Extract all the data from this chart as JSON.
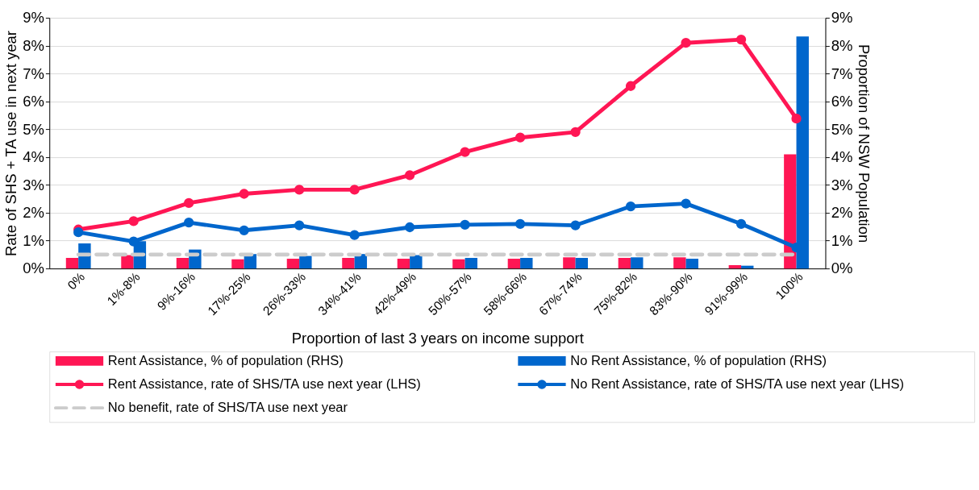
{
  "chart_data": {
    "type": "bar",
    "xlabel": "Proportion of last 3 years on income support",
    "ylabel": "Rate of SHS + TA use in next year",
    "y2label": "Proportion of NSW Population",
    "categories": [
      "0%",
      "1%-8%",
      "9%-16%",
      "17%-25%",
      "26%-33%",
      "34%-41%",
      "42%-49%",
      "50%-57%",
      "58%-66%",
      "67%-74%",
      "75%-82%",
      "83%-90%",
      "91%-99%",
      "100%"
    ],
    "series": [
      {
        "name": "Rent Assistance, % of population (RHS)",
        "axis": "y2",
        "color": "#ff1654",
        "values": [
          0.38,
          0.48,
          0.38,
          0.33,
          0.35,
          0.38,
          0.35,
          0.33,
          0.35,
          0.4,
          0.38,
          0.4,
          0.12,
          4.1
        ]
      },
      {
        "name": "No Rent Assistance, % of population (RHS)",
        "axis": "y2",
        "color": "#0066cc",
        "values": [
          0.9,
          0.98,
          0.68,
          0.52,
          0.45,
          0.52,
          0.48,
          0.38,
          0.38,
          0.38,
          0.4,
          0.35,
          0.1,
          8.33
        ]
      },
      {
        "name": "Rent Assistance, rate of SHS/TA use next year (LHS)",
        "type": "line",
        "marker": "circle",
        "line_style": "solid",
        "color": "#ff1654",
        "values": [
          1.4,
          1.7,
          2.35,
          2.68,
          2.83,
          2.83,
          3.35,
          4.18,
          4.7,
          4.9,
          6.55,
          8.1,
          8.22,
          5.38
        ]
      },
      {
        "name": "No Rent Assistance, rate of SHS/TA use next year (LHS)",
        "type": "line",
        "marker": "circle",
        "line_style": "solid",
        "color": "#0066cc",
        "values": [
          1.3,
          0.97,
          1.65,
          1.37,
          1.55,
          1.2,
          1.48,
          1.57,
          1.6,
          1.55,
          2.23,
          2.33,
          1.6,
          0.75
        ]
      },
      {
        "name": "No benefit, rate of SHS/TA use next year",
        "type": "line",
        "marker": "none",
        "line_style": "dashed",
        "color": "#cccccc",
        "values": [
          0.5,
          0.5,
          0.5,
          0.5,
          0.5,
          0.5,
          0.5,
          0.5,
          0.5,
          0.5,
          0.5,
          0.5,
          0.5,
          0.5
        ]
      }
    ],
    "ylim": [
      0,
      9
    ],
    "yticks": [
      {
        "value": 0,
        "label": "0%"
      },
      {
        "value": 1,
        "label": "1%"
      },
      {
        "value": 2,
        "label": "2%"
      },
      {
        "value": 3,
        "label": "3%"
      },
      {
        "value": 4,
        "label": "4%"
      },
      {
        "value": 5,
        "label": "5%"
      },
      {
        "value": 6,
        "label": "6%"
      },
      {
        "value": 7,
        "label": "7%"
      },
      {
        "value": 8,
        "label": "8%"
      },
      {
        "value": 9,
        "label": "9%"
      }
    ],
    "y2lim": [
      0,
      9
    ],
    "y2ticks": [
      {
        "value": 0,
        "label": "0%"
      },
      {
        "value": 1,
        "label": "1%"
      },
      {
        "value": 2,
        "label": "2%"
      },
      {
        "value": 3,
        "label": "3%"
      },
      {
        "value": 4,
        "label": "4%"
      },
      {
        "value": 5,
        "label": "5%"
      },
      {
        "value": 6,
        "label": "6%"
      },
      {
        "value": 7,
        "label": "7%"
      },
      {
        "value": 8,
        "label": "8%"
      },
      {
        "value": 9,
        "label": "9%"
      }
    ],
    "grid": "y",
    "legend": "bottom"
  }
}
